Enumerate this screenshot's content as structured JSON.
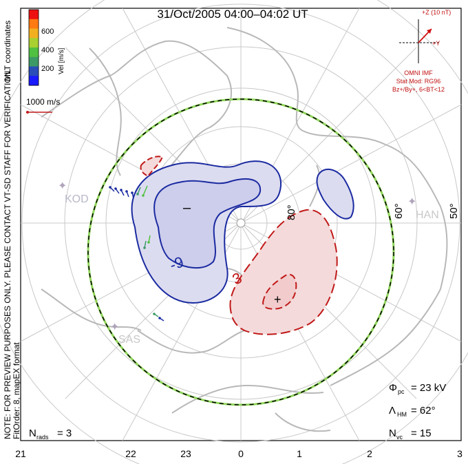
{
  "title": "31/Oct/2005 04:00–04:02 UT",
  "coordinates_label": "MLT coordinates",
  "vel_label": "Vel [m/s]",
  "colorbar": {
    "ticks": [
      "600",
      "400",
      "200"
    ],
    "colors": [
      "#ee1111",
      "#ff7a10",
      "#f2b020",
      "#a8d030",
      "#50c040",
      "#3c9a66",
      "#2a4db8",
      "#1a1aff"
    ]
  },
  "vector_scale": "1000 m/s",
  "note_line1": "NOTE: FOR PREVIEW PURPOSES ONLY. PLEASE CONTACT VT-SD STAFF FOR VERIFICATION.",
  "note_line2": "FitOrder: 8, mapEX format",
  "imf": {
    "z_label": "+Z (10 nT)",
    "y_label": "+Y",
    "source": "OMNI IMF",
    "model": "Stat Mod: RG96",
    "condition": "Bz+/By+, 6<BT<12"
  },
  "stations": {
    "kod": "KOD",
    "han": "HAN",
    "sas": "SAS"
  },
  "lat_labels": {
    "lat80": "80°",
    "lat60": "60°",
    "lat50": "50°"
  },
  "contours": {
    "neg_label": "-9",
    "pos_label": "3",
    "neg_marker": "–",
    "pos_marker": "+"
  },
  "stats": {
    "phi_symbol": "Φ",
    "phi_sub": "pc",
    "phi_value": "= 23 kV",
    "lambda_symbol": "Λ",
    "lambda_sub": "HM",
    "lambda_value": "= 62°",
    "nvc_symbol": "N",
    "nvc_sub": "vc",
    "nvc_value": "= 15",
    "nrads_symbol": "N",
    "nrads_sub": "rads",
    "nrads_value": "= 3"
  },
  "mlt_ticks": [
    "21",
    "22",
    "23",
    "0",
    "1",
    "2",
    "3"
  ]
}
